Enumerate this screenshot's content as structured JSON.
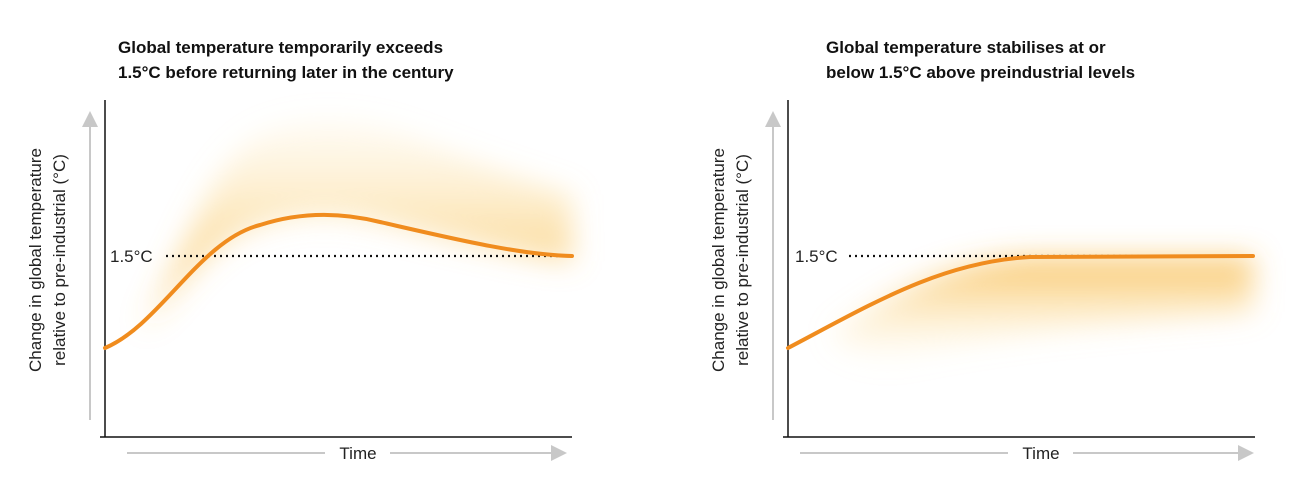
{
  "panels": [
    {
      "title": [
        "Global temperature temporarily exceeds",
        "1.5°C before returning later in the century"
      ],
      "y_label": [
        "Change in global temperature",
        "relative to pre-industrial (°C)"
      ],
      "threshold": "1.5°C",
      "x_label": "Time"
    },
    {
      "title": [
        "Global temperature stabilises at or",
        "below 1.5°C above preindustrial levels"
      ],
      "y_label": [
        "Change in global temperature",
        "relative to pre-industrial (°C)"
      ],
      "threshold": "1.5°C",
      "x_label": "Time"
    }
  ]
}
